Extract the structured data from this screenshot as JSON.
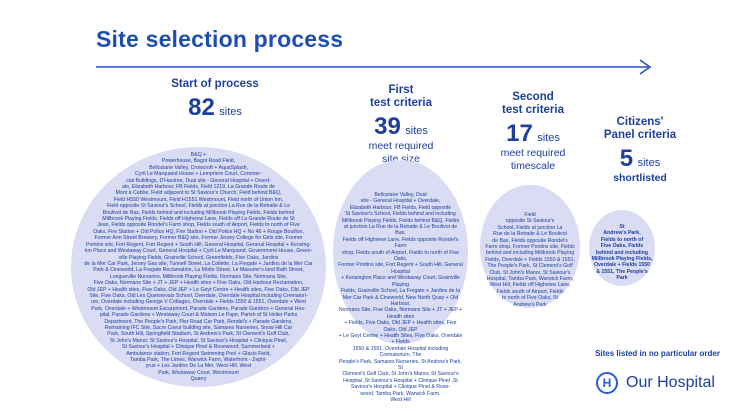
{
  "page": {
    "title": "Site selection process"
  },
  "stages": [
    {
      "label": "Start of process",
      "count": "82",
      "unit": "sites",
      "desc": ""
    },
    {
      "label": "First\ntest criteria",
      "count": "39",
      "unit": "sites",
      "desc": "meet required\nsite size"
    },
    {
      "label": "Second\ntest criteria",
      "count": "17",
      "unit": "sites",
      "desc": "meet required\ntimescale"
    },
    {
      "label": "Citizens'\nPanel criteria",
      "count": "5",
      "unit": "sites",
      "desc": "shortlisted"
    }
  ],
  "circles": [
    {
      "text": "B&Q +\nPowerhouse, Bagot Road Field,\nBelloziane Valley, Crowcroft + AquaSplash,\nCyril Le Marquand House + Lempriere Court, Commer-\ncial Buildings, D'Hautree, Dual site - General Hospital + Overd-\nale, Elizabeth Harbour, FB Fields, Field 1219, La Grande Route de\nMont à Cabbe, Field adjacent to St Saviour's Church, Field behind B&Q,\nField H550 Westmount, Field H1551 Westmount, Field north of Union Inn,\nField opposite St Saviour's School, Fields at junction La Rue de la Retraite & Le\nBoulivot de Bas, Fields behind and including Millbrook Playing Fields, Fields behind\nMillbrook Playing Fields, Fields off Highview Lane, Fields off La Grande Route de St\nJean, Fields opposite Rondel's Farm shop, Fields south of Airport, Fields to north of Five\nOaks, Fire Station + Old Police HQ, Fire Station + Old Police HQ + No 46 + Rouge Bouillon,\nFormer Ann Street Brewery, Former B&Q site, Former Jersey College for Girls site, Former\nPontins site, Fort Regent, Fort Regent + South Hill, General Hospital, General Hospital + Kensing-\nton Place and Westaway Court, General Hospital + Cyril Le Marquand, Government House, Green-\nville Playing Fields, Grainville School, Greenfields, Five Oaks, Jardins\nde la Mer Car Park, Jersey Gas site, Tunnell Street, La Collette, La Fregate + Jardins de la Mer Car\nPark & Cineworld, La Fregate Reclamation, La Motte Street, Le Masurier's land Bath Street,\nLongueville Nurseries, Millbrook Playing Fields, Normans Site, Normans Site,\nFive Oaks, Normans Site + JT + JEP + Health sites + Five Oaks, Old Harbour Reclamation,\nOld JEP + Health sites, Five Oaks, Old JEP + Le Geyt Centre + Health sites, Five Oaks, Old JEP\nSite, Five Oaks, Old Les Quennevais School, Overdale, Overdale Hospital including Crematori-\num, Overdale including George V Cottages, Overdale + Fields 1550 & 1551, Overdale + West\nPark, Overdale + Westmount Escarpment, Parade Gardens, Parade Gardens + General Hos-\npital, Parade Gardens + Westaway Court & Maison Le Pape, Parish of St Helier Parks\nDepartment, The People's Park, Pier Road Car Park, Rondel's + Parade Gardens,\nRemaining IFC Site, Sacre Coeur building site, Samares Nurseries, Snow Hill Car\nPark, South Hill, Springfield Stadium, St Andrew's Park, St Clement's Golf Club,\nSt John's Manor, St Saviour's Hospital, St Saviour's Hospital + Clinique Pinel,\nSt Saviour's Hospital + Clinique Pinel & Rosewood, Summerland +\nAmbulance station, Fort Regent Swimming Pool + Glacis Field,\nTamba Park, The Limes, Warwick Farm, Waterfront - Zephi-\nyrus + Les Jardins De La Mer, West Hill, West\nPark, Westaway Court, Westmount\nQuarry"
    },
    {
      "text": "Belloziane Valley, Dual\nsite - General Hospital + Overdale,\nElizabeth Harbour, FB Fields, Field opposite\nSt Saviour's School, Fields behind and including\nMillbrook Playing Fields, Fields behind B&Q, Fields\nat junction La Rue de la Retraite & Le Boulivot de Bas,\nFields off Highview Lane, Fields opposite Rondel's Farm\nshop, Fields south of Airport, Fields to north of Five Oaks,\nFormer Pontins site, Fort Regent + South Hill, General Hospital\n+ Kensington Place and Westaway Court, Grainville Playing\nFields, Grainville School, La Fregate + Jardins de la\nMer Car Park & Cineworld, New North Quay + Old Harbour,\nNormans Site, Five Oaks, Normans Site + JT + JEP + Health sites\n+ Fields, Five Oaks, Old JEP + Health sites, Five Oaks, Old JEP\n+ Le Geyt Centre + Health Sites, Five Oaks, Overdale + Fields\n1550 & 1551, Overdale Hospital including Crematorium, The\nPeople's Park, Samares Nurseries, St Andrew's Park, St\nClement's Golf Club, St John's Manor, St Saviour's\nHospital ,St Saviour's Hospital + Clinique Pinel ,St\nSaviour's Hospital + Clinique Pinel & Rose-\nwood, Tamba Park, Warwick Farm,\nWest Hill"
    },
    {
      "text": "Field\nopposite St Saviour's\nSchool, Fields at junction La\nRue de la Retraite & Le Boulivot\nde Bas, Fields opposite Rondel's\nFarm shop, Former Pontins site, Fields\nbehind and including Millbrook Playing\nFields, Overdale + Fields 1550 & 1551,\nThe People's Park, St Clement's Golf\nClub, St John's Manor, St Saviour's\nHospital, Tamba Park, Warwick Farm,\nWest Hill, Fields off Highview Lane,\nFields south of Airport, Fields\nto north of Five Oaks, St\nAndrew's Park"
    },
    {
      "text": "St\nAndrew's Park,\nFields to north of\nFive Oaks, Fields\nbehind and including\nMillbrook Playing Fields,\nOverdale + Fields 1550\n& 1551, The People's\nPark"
    }
  ],
  "footnote": "Sites listed in no particular order",
  "logo": {
    "mark": "H",
    "name": "Our Hospital"
  },
  "colors": {
    "title": "#1e4fb0",
    "text": "#1e3f9a",
    "circle": "#d9dcf3",
    "arrow": "#2a4fc0"
  }
}
